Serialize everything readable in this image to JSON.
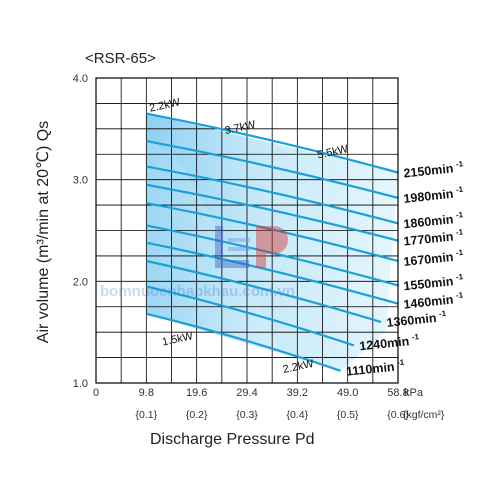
{
  "chart_data": {
    "type": "line",
    "title": "<RSR-65>",
    "xlabel": "Discharge Pressure Pd",
    "ylabel": "Air volume (m³/min at 20℃) Qs",
    "x_unit_primary": "kPa",
    "x_unit_secondary": "{kgf/cm²}",
    "xlim": [
      0,
      58.8
    ],
    "ylim": [
      1.0,
      4.0
    ],
    "x_ticks": [
      "0",
      "9.8",
      "19.6",
      "29.4",
      "39.2",
      "49.0",
      "58.8"
    ],
    "x_ticks_secondary": [
      "{0.1}",
      "{0.2}",
      "{0.3}",
      "{0.4}",
      "{0.5}",
      "{0.6}"
    ],
    "y_ticks": [
      "1.0",
      "2.0",
      "3.0",
      "4.0"
    ],
    "grid": true,
    "speed_unit": "min",
    "speed_exponent": "-1",
    "series": [
      {
        "name": "2150",
        "x": [
          9.8,
          58.8
        ],
        "y": [
          3.65,
          3.07
        ]
      },
      {
        "name": "1980",
        "x": [
          9.8,
          58.8
        ],
        "y": [
          3.38,
          2.82
        ]
      },
      {
        "name": "1860",
        "x": [
          9.8,
          58.8
        ],
        "y": [
          3.13,
          2.57
        ]
      },
      {
        "name": "1770",
        "x": [
          9.8,
          58.8
        ],
        "y": [
          2.95,
          2.4
        ]
      },
      {
        "name": "1670",
        "x": [
          9.8,
          58.8
        ],
        "y": [
          2.77,
          2.2
        ]
      },
      {
        "name": "1550",
        "x": [
          9.8,
          58.8
        ],
        "y": [
          2.55,
          1.96
        ]
      },
      {
        "name": "1460",
        "x": [
          9.8,
          58.8
        ],
        "y": [
          2.38,
          1.78
        ]
      },
      {
        "name": "1360",
        "x": [
          9.8,
          55.5
        ],
        "y": [
          2.2,
          1.6
        ]
      },
      {
        "name": "1240",
        "x": [
          9.8,
          50.2
        ],
        "y": [
          1.95,
          1.37
        ]
      },
      {
        "name": "1110",
        "x": [
          9.8,
          47.6
        ],
        "y": [
          1.68,
          1.12
        ]
      }
    ],
    "power_labels": [
      {
        "text": "2.2kW",
        "x": 13.5,
        "y": 3.7
      },
      {
        "text": "3.7kW",
        "x": 28.2,
        "y": 3.48
      },
      {
        "text": "5.5kW",
        "x": 46.2,
        "y": 3.24
      },
      {
        "text": "1.5kW",
        "x": 16.0,
        "y": 1.4
      },
      {
        "text": "2.2kW",
        "x": 39.5,
        "y": 1.13
      }
    ],
    "watermark": "bomnuocnhapkhau.com.vn"
  }
}
